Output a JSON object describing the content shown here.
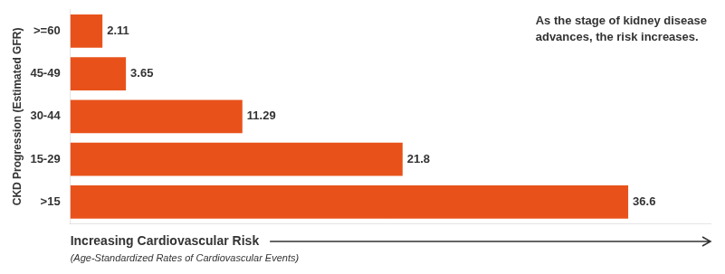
{
  "chart_data": {
    "type": "bar",
    "orientation": "horizontal",
    "categories": [
      ">=60",
      "45-49",
      "30-44",
      "15-29",
      ">15"
    ],
    "values": [
      2.11,
      3.65,
      11.29,
      21.8,
      36.6
    ],
    "color": "#E8521A",
    "ylabel": "CKD Progression (Estimated GFR)",
    "xlabel": "Increasing Cardiovascular Risk",
    "annotations": [
      "As the stage of kidney disease\nadvances, the risk increases.",
      "(Age-Standardized Rates of Cardiovascular Events)"
    ],
    "xlim": [
      0,
      42
    ],
    "grid": false,
    "data_labels": true,
    "tick_labels": "y"
  }
}
